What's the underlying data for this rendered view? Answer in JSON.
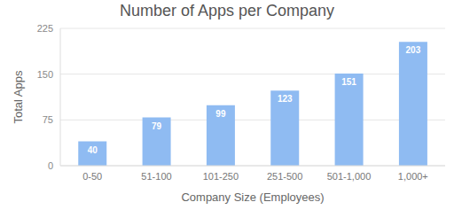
{
  "chart_data": {
    "type": "bar",
    "title": "Number of Apps per Company",
    "x_label": "Company Size (Employees)",
    "y_label": "Total Apps",
    "categories": [
      "0-50",
      "51-100",
      "101-250",
      "251-500",
      "501-1,000",
      "1,000+"
    ],
    "values": [
      40,
      79,
      99,
      123,
      151,
      203
    ],
    "color": "#8fbbf2",
    "ylim": [
      0,
      225
    ],
    "yticks": [
      0,
      75,
      150,
      225
    ],
    "grid": true,
    "data_labels": true
  }
}
